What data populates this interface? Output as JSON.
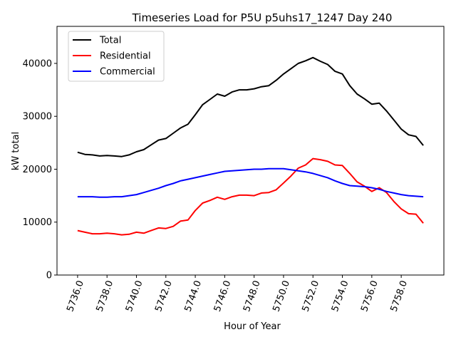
{
  "chart_data": {
    "type": "line",
    "title": "Timeseries Load for P5U p5uhs17_1247  Day 240",
    "xlabel": "Hour of Year",
    "ylabel": "kW total",
    "xlim": [
      5734.6,
      5760.9
    ],
    "ylim": [
      0,
      47000
    ],
    "xticks": [
      5736,
      5738,
      5740,
      5742,
      5744,
      5746,
      5748,
      5750,
      5752,
      5754,
      5756,
      5758
    ],
    "xtick_labels": [
      "5736.0",
      "5738.0",
      "5740.0",
      "5742.0",
      "5744.0",
      "5746.0",
      "5748.0",
      "5750.0",
      "5752.0",
      "5754.0",
      "5756.0",
      "5758.0"
    ],
    "yticks": [
      0,
      10000,
      20000,
      30000,
      40000
    ],
    "ytick_labels": [
      "0",
      "10000",
      "20000",
      "30000",
      "40000"
    ],
    "legend_position": "top-left",
    "series": [
      {
        "name": "Total",
        "color": "#000000",
        "x": [
          5736.0,
          5736.5,
          5737.0,
          5737.5,
          5738.0,
          5738.5,
          5739.0,
          5739.5,
          5740.0,
          5740.5,
          5741.0,
          5741.5,
          5742.0,
          5742.5,
          5743.0,
          5743.5,
          5744.0,
          5744.5,
          5745.0,
          5745.5,
          5746.0,
          5746.5,
          5747.0,
          5747.5,
          5748.0,
          5748.5,
          5749.0,
          5749.5,
          5750.0,
          5750.5,
          5751.0,
          5751.5,
          5752.0,
          5752.5,
          5753.0,
          5753.5,
          5754.0,
          5754.5,
          5755.0,
          5755.5,
          5756.0,
          5756.5,
          5757.0,
          5757.5,
          5758.0,
          5758.5,
          5759.0,
          5759.5
        ],
        "values": [
          23200,
          22800,
          22700,
          22500,
          22600,
          22500,
          22400,
          22700,
          23300,
          23700,
          24600,
          25500,
          25800,
          26800,
          27800,
          28500,
          30300,
          32200,
          33200,
          34200,
          33800,
          34600,
          35000,
          35000,
          35200,
          35600,
          35800,
          36800,
          38000,
          39000,
          40000,
          40500,
          41100,
          40400,
          39800,
          38500,
          38000,
          35800,
          34200,
          33300,
          32300,
          32500,
          31000,
          29300,
          27600,
          26500,
          26200,
          24500
        ]
      },
      {
        "name": "Residential",
        "color": "#ff0000",
        "x": [
          5736.0,
          5736.5,
          5737.0,
          5737.5,
          5738.0,
          5738.5,
          5739.0,
          5739.5,
          5740.0,
          5740.5,
          5741.0,
          5741.5,
          5742.0,
          5742.5,
          5743.0,
          5743.5,
          5744.0,
          5744.5,
          5745.0,
          5745.5,
          5746.0,
          5746.5,
          5747.0,
          5747.5,
          5748.0,
          5748.5,
          5749.0,
          5749.5,
          5750.0,
          5750.5,
          5751.0,
          5751.5,
          5752.0,
          5752.5,
          5753.0,
          5753.5,
          5754.0,
          5754.5,
          5755.0,
          5755.5,
          5756.0,
          5756.5,
          5757.0,
          5757.5,
          5758.0,
          5758.5,
          5759.0,
          5759.5
        ],
        "values": [
          8400,
          8100,
          7800,
          7800,
          7900,
          7800,
          7600,
          7700,
          8100,
          7900,
          8400,
          8900,
          8800,
          9200,
          10200,
          10400,
          12200,
          13600,
          14100,
          14700,
          14300,
          14800,
          15100,
          15100,
          15000,
          15500,
          15600,
          16100,
          17400,
          18700,
          20200,
          20800,
          22000,
          21800,
          21500,
          20800,
          20700,
          19200,
          17600,
          16800,
          15800,
          16500,
          15600,
          13900,
          12500,
          11600,
          11500,
          9800
        ]
      },
      {
        "name": "Commercial",
        "color": "#0000ff",
        "x": [
          5736.0,
          5736.5,
          5737.0,
          5737.5,
          5738.0,
          5738.5,
          5739.0,
          5739.5,
          5740.0,
          5740.5,
          5741.0,
          5741.5,
          5742.0,
          5742.5,
          5743.0,
          5743.5,
          5744.0,
          5744.5,
          5745.0,
          5745.5,
          5746.0,
          5746.5,
          5747.0,
          5747.5,
          5748.0,
          5748.5,
          5749.0,
          5749.5,
          5750.0,
          5750.5,
          5751.0,
          5751.5,
          5752.0,
          5752.5,
          5753.0,
          5753.5,
          5754.0,
          5754.5,
          5755.0,
          5755.5,
          5756.0,
          5756.5,
          5757.0,
          5757.5,
          5758.0,
          5758.5,
          5759.0,
          5759.5
        ],
        "values": [
          14800,
          14800,
          14800,
          14700,
          14700,
          14800,
          14800,
          15000,
          15200,
          15600,
          16000,
          16400,
          16900,
          17300,
          17800,
          18100,
          18400,
          18700,
          19000,
          19300,
          19600,
          19700,
          19800,
          19900,
          20000,
          20000,
          20100,
          20100,
          20100,
          19900,
          19700,
          19500,
          19200,
          18800,
          18400,
          17800,
          17300,
          16900,
          16800,
          16700,
          16500,
          16200,
          15800,
          15500,
          15200,
          15000,
          14900,
          14800
        ]
      }
    ]
  }
}
